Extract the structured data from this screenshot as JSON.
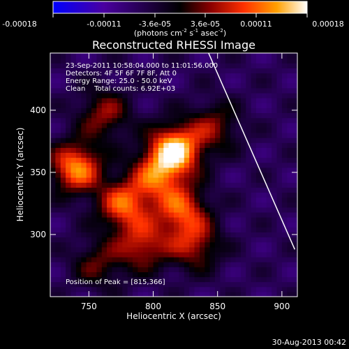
{
  "colorbar": {
    "ticks": [
      "-0.00018",
      "-0.00011",
      "-3.6e-05",
      "3.6e-05",
      "0.00011",
      "0.00018"
    ],
    "unit_label": "(photons cm",
    "unit_sup1": "-2",
    "unit_mid": " s",
    "unit_sup2": "-1",
    "unit_mid2": " asec",
    "unit_sup3": "-2",
    "unit_end": ")",
    "colors": [
      "#0000ff",
      "#4a00a0",
      "#000000",
      "#8a0000",
      "#ff3000",
      "#ffa000",
      "#ffffff"
    ]
  },
  "chart_data": {
    "type": "heatmap",
    "title": "Reconstructed RHESSI Image",
    "xlabel": "Heliocentric X (arcsec)",
    "ylabel": "Heliocentric Y (arcsec)",
    "xlim": [
      720,
      912
    ],
    "ylim": [
      250,
      446
    ],
    "xticks": [
      "750",
      "800",
      "850",
      "900"
    ],
    "yticks": [
      "300",
      "350",
      "400"
    ],
    "xtick_values": [
      750,
      800,
      850,
      900
    ],
    "ytick_values": [
      300,
      350,
      400
    ],
    "annotations": [
      "23-Sep-2011 10:58:04.000 to 11:01:56.000",
      "Detectors: 4F 5F 6F 7F 8F, Att 0",
      "Energy Range: 25.0 - 50.0 keV",
      "Clean    Total counts: 6.92E+03"
    ],
    "peak_label": "Position of Peak = [815,366]",
    "peak": [
      815,
      366
    ],
    "limb_line": [
      [
        843,
        446
      ],
      [
        910,
        288
      ]
    ],
    "sources": [
      {
        "x": 815,
        "y": 366,
        "amp": 1.0
      },
      {
        "x": 738,
        "y": 352,
        "amp": 0.82
      },
      {
        "x": 775,
        "y": 322,
        "amp": 0.7
      },
      {
        "x": 820,
        "y": 318,
        "amp": 0.65
      },
      {
        "x": 800,
        "y": 345,
        "amp": 0.6
      },
      {
        "x": 760,
        "y": 395,
        "amp": 0.45
      },
      {
        "x": 790,
        "y": 290,
        "amp": 0.55
      },
      {
        "x": 845,
        "y": 385,
        "amp": 0.4
      },
      {
        "x": 755,
        "y": 275,
        "amp": 0.35
      },
      {
        "x": 830,
        "y": 290,
        "amp": 0.5
      }
    ]
  },
  "timestamp": "30-Aug-2013 00:42"
}
